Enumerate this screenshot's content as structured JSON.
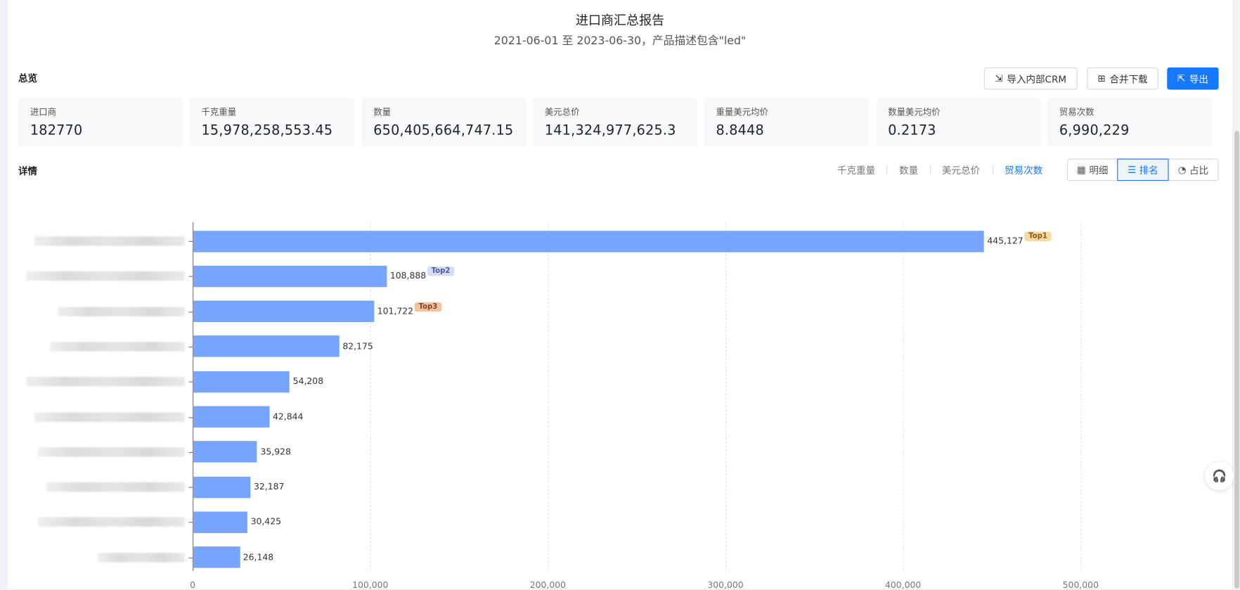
{
  "header": {
    "title": "进口商汇总报告",
    "subtitle": "2021-06-01 至 2023-06-30，产品描述包含\"led\""
  },
  "overview": {
    "label": "总览",
    "buttons": {
      "crm": "导入内部CRM",
      "merge": "合并下载",
      "export": "导出"
    },
    "cards": [
      {
        "label": "进口商",
        "value": "182770"
      },
      {
        "label": "千克重量",
        "value": "15,978,258,553.45"
      },
      {
        "label": "数量",
        "value": "650,405,664,747.15"
      },
      {
        "label": "美元总价",
        "value": "141,324,977,625.3"
      },
      {
        "label": "重量美元均价",
        "value": "8.8448"
      },
      {
        "label": "数量美元均价",
        "value": "0.2173"
      },
      {
        "label": "贸易次数",
        "value": "6,990,229"
      }
    ]
  },
  "details": {
    "label": "详情",
    "metrics": [
      "千克重量",
      "数量",
      "美元总价",
      "贸易次数"
    ],
    "active_metric": "贸易次数",
    "views": [
      "明细",
      "排名",
      "占比"
    ],
    "active_view": "排名"
  },
  "colors": {
    "accent": "#1677ff",
    "bar": "#77a4fd",
    "top1": "#f7d9a3",
    "top2": "#d5dcf3",
    "top3": "#f0c3a4"
  },
  "chart_data": {
    "type": "bar",
    "orientation": "horizontal",
    "values": [
      445127,
      108888,
      101722,
      82175,
      54208,
      42844,
      35928,
      32187,
      30425,
      26148
    ],
    "value_labels": [
      "445,127",
      "108,888",
      "101,722",
      "82,175",
      "54,208",
      "42,844",
      "35,928",
      "32,187",
      "30,425",
      "26,148"
    ],
    "badges": [
      "Top1",
      "Top2",
      "Top3"
    ],
    "xlim": [
      0,
      550000
    ],
    "xticks": [
      "0",
      "100,000",
      "200,000",
      "300,000",
      "400,000",
      "500,000"
    ],
    "grid": true,
    "categories_redacted": true
  }
}
